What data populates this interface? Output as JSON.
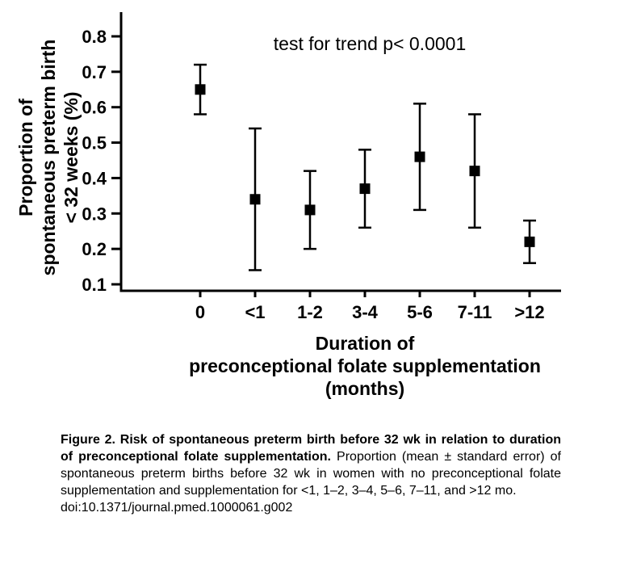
{
  "figure": {
    "annotation": "test for trend p< 0.0001",
    "y_axis_label_lines": [
      "Proportion of",
      "spontaneous preterm birth",
      "< 32 weeks (%)"
    ],
    "x_axis_label_lines": [
      "Duration of",
      "preconceptional folate supplementation",
      "(months)"
    ]
  },
  "chart_data": {
    "type": "scatter",
    "marker": "filled-square",
    "error_bars": "mean ± standard error",
    "annotation": "test for trend p< 0.0001",
    "categories": [
      "0",
      "<1",
      "1-2",
      "3-4",
      "5-6",
      "7-11",
      ">12"
    ],
    "means": [
      0.65,
      0.34,
      0.31,
      0.37,
      0.46,
      0.42,
      0.22
    ],
    "errors": [
      0.07,
      0.2,
      0.11,
      0.11,
      0.15,
      0.16,
      0.06
    ],
    "ylabel": "Proportion of spontaneous preterm birth < 32 weeks (%)",
    "xlabel": "Duration of preconceptional folate supplementation (months)",
    "ylim": [
      0.1,
      0.8
    ],
    "yticks": [
      0.1,
      0.2,
      0.3,
      0.4,
      0.5,
      0.6,
      0.7,
      0.8
    ],
    "grid": false,
    "legend": false
  },
  "caption": {
    "bold": "Figure 2. Risk of spontaneous preterm birth before 32 wk in relation to duration of preconceptional folate supplementation.",
    "text": "Proportion (mean ± standard error) of spontaneous preterm births before 32 wk in women with no preconceptional folate supplementation and supplementation for <1, 1–2, 3–4, 5–6, 7–11, and >12 mo.",
    "doi": "doi:10.1371/journal.pmed.1000061.g002"
  },
  "colors": {
    "marker": "#000000",
    "axis": "#000000",
    "text": "#000000",
    "background": "#ffffff"
  }
}
